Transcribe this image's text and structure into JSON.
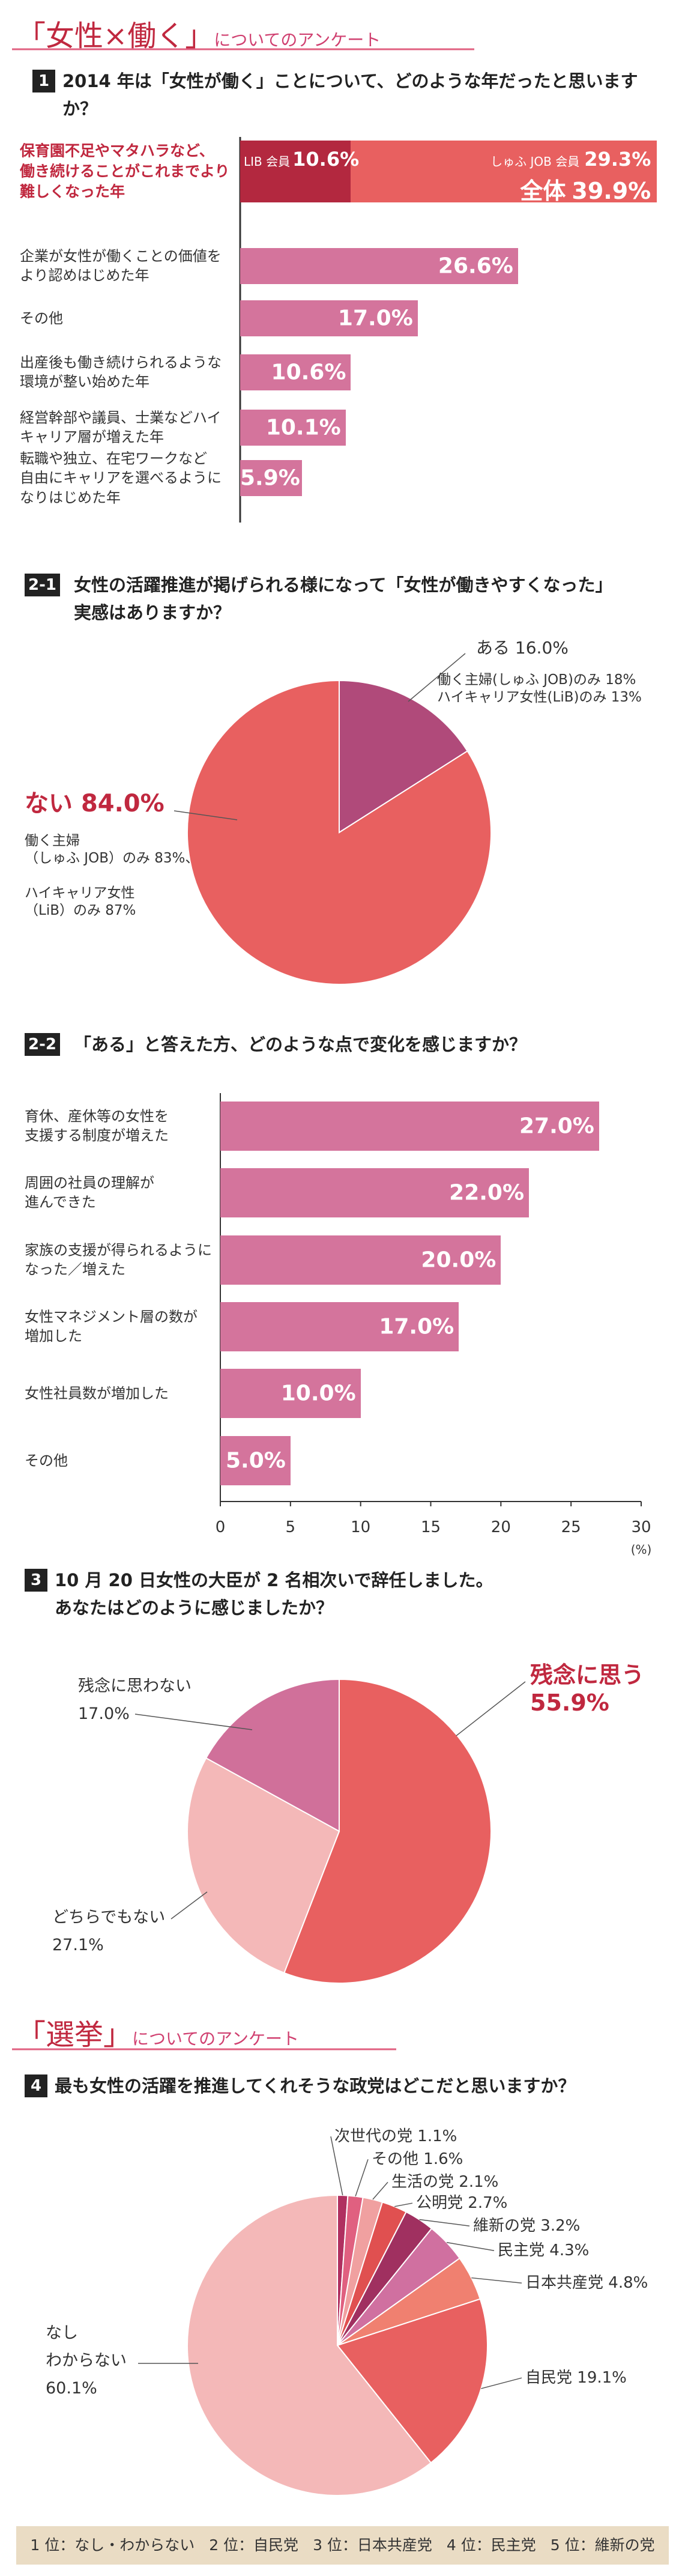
{
  "headings": [
    {
      "title": "「女性×働く」",
      "subtitle": "についてのアンケート"
    },
    {
      "title": "「選挙」",
      "subtitle": "についてのアンケート"
    }
  ],
  "chart_data": [
    {
      "type": "bar",
      "number": "1",
      "title": "2014 年は「女性が働く」ことについて、どのような年だったと思いますか？",
      "categories": [
        "保育園不足やマタハラなど、\n働き続けることがこれまでより\n難しくなった年",
        "企業が女性が働くことの価値を\nより認めはじめた年",
        "その他",
        "出産後も働き続けられるような\n環境が整い始めた年",
        "経営幹部や議員、士業などハイ\nキャリア層が増えた年",
        "転職や独立、在宅ワークなど\n自由にキャリアを選べるように\nなりはじめた年"
      ],
      "values": [
        39.9,
        26.6,
        17.0,
        10.6,
        10.1,
        5.9
      ],
      "value_labels": [
        "39.9%",
        "26.6%",
        "17.0%",
        "10.6%",
        "10.1%",
        "5.9%"
      ],
      "color": "#d4749c",
      "highlight_color": "#e86060",
      "breakdown": {
        "total_label": "全体",
        "series": [
          {
            "name": "LIB 会員",
            "value": 10.6,
            "value_label": "10.6%",
            "color": "#b3283f"
          },
          {
            "name": "しゅふ JOB 会員",
            "value": 29.3,
            "value_label": "29.3%",
            "color": "#e86060"
          }
        ]
      }
    },
    {
      "type": "pie",
      "number": "2-1",
      "title": "女性の活躍推進が掲げられる様になって「女性が働きやすくなった」\n実感はありますか？",
      "categories": [
        "ある",
        "ない"
      ],
      "values": [
        16.0,
        84.0
      ],
      "value_labels": [
        "16.0%",
        "84.0%"
      ],
      "colors": [
        "#b04a7a",
        "#e86060"
      ],
      "notes": [
        "働く主婦(しゅふ JOB)のみ 18%\nハイキャリア女性(LiB)のみ 13%",
        "働く主婦\n（しゅふ JOB）のみ 83%、\n\nハイキャリア女性\n（LiB）のみ 87%"
      ]
    },
    {
      "type": "bar",
      "number": "2-2",
      "title": "「ある」と答えた方、どのような点で変化を感じますか？",
      "categories": [
        "育休、産休等の女性を\n支援する制度が増えた",
        "周囲の社員の理解が\n進んできた",
        "家族の支援が得られるように\nなった／増えた",
        "女性マネジメント層の数が\n増加した",
        "女性社員数が増加した",
        "その他"
      ],
      "values": [
        27.0,
        22.0,
        20.0,
        17.0,
        10.0,
        5.0
      ],
      "value_labels": [
        "27.0%",
        "22.0%",
        "20.0%",
        "17.0%",
        "10.0%",
        "5.0%"
      ],
      "color": "#d4749c",
      "xlim": [
        0,
        30
      ],
      "xticks": [
        0,
        5,
        10,
        15,
        20,
        25,
        30
      ],
      "x_unit": "(%)"
    },
    {
      "type": "pie",
      "number": "3",
      "title": "10 月 20 日女性の大臣が 2 名相次いで辞任しました。\nあなたはどのように感じましたか？",
      "categories": [
        "残念に思う",
        "どちらでもない",
        "残念に思わない"
      ],
      "values": [
        55.9,
        27.1,
        17.0
      ],
      "value_labels": [
        "55.9%",
        "27.1%",
        "17.0%"
      ],
      "colors": [
        "#e86060",
        "#f4b8b8",
        "#d0709a"
      ]
    },
    {
      "type": "pie",
      "number": "4",
      "title": "最も女性の活躍を推進してくれそうな政党はどこだと思いますか？",
      "categories": [
        "次世代の党",
        "その他",
        "生活の党",
        "公明党",
        "維新の党",
        "民主党",
        "日本共産党",
        "自民党",
        "なし\nわからない"
      ],
      "values": [
        1.1,
        1.6,
        2.1,
        2.7,
        3.2,
        4.3,
        4.8,
        19.1,
        60.1
      ],
      "value_labels": [
        "1.1%",
        "1.6%",
        "2.1%",
        "2.7%",
        "3.2%",
        "4.3%",
        "4.8%",
        "19.1%",
        "60.1%"
      ],
      "colors": [
        "#b03060",
        "#e06080",
        "#f0a0a0",
        "#e05050",
        "#a03060",
        "#d070a0",
        "#f08070",
        "#e86060",
        "#f4b8b8"
      ]
    }
  ],
  "footer": {
    "ranking": [
      "1 位：なし・わからない",
      "2 位：自民党",
      "3 位：日本共産党",
      "4 位：民主党",
      "5 位：維新の党"
    ]
  }
}
